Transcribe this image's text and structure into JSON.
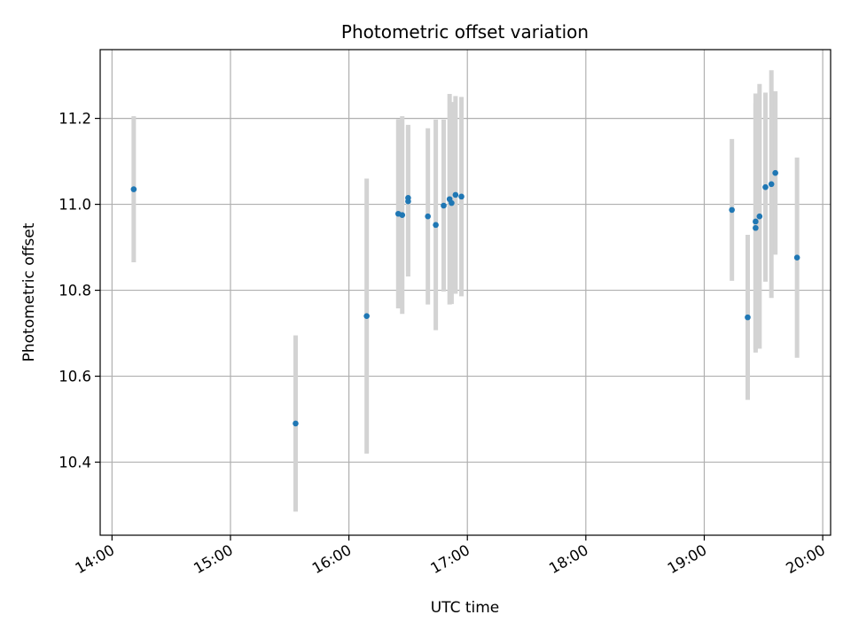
{
  "chart_data": {
    "type": "scatter",
    "title": "Photometric offset variation",
    "xlabel": "UTC time",
    "ylabel": "Photometric offset",
    "x_tick_labels": [
      "14:00",
      "15:00",
      "16:00",
      "17:00",
      "18:00",
      "19:00",
      "20:00"
    ],
    "y_tick_labels": [
      "10.4",
      "10.6",
      "10.8",
      "11.0",
      "11.2"
    ],
    "y_ticks": [
      10.4,
      10.6,
      10.8,
      11.0,
      11.2
    ],
    "xlim": [
      "13:54",
      "20:04"
    ],
    "ylim": [
      10.23,
      11.36
    ],
    "grid": true,
    "marker_color": "#1f77b4",
    "errorbar_color": "#d3d3d3",
    "points": [
      {
        "x": "14:11",
        "y": 11.035,
        "err": 0.17
      },
      {
        "x": "15:33",
        "y": 10.49,
        "err": 0.205
      },
      {
        "x": "16:09",
        "y": 10.74,
        "err": 0.32
      },
      {
        "x": "16:25",
        "y": 10.978,
        "err": 0.22
      },
      {
        "x": "16:27",
        "y": 10.975,
        "err": 0.23
      },
      {
        "x": "16:30",
        "y": 11.015,
        "err": 0.17
      },
      {
        "x": "16:30",
        "y": 11.007,
        "err": 0.175
      },
      {
        "x": "16:40",
        "y": 10.972,
        "err": 0.205
      },
      {
        "x": "16:44",
        "y": 10.952,
        "err": 0.245
      },
      {
        "x": "16:48",
        "y": 10.997,
        "err": 0.2
      },
      {
        "x": "16:51",
        "y": 11.012,
        "err": 0.245
      },
      {
        "x": "16:52",
        "y": 11.003,
        "err": 0.235
      },
      {
        "x": "16:54",
        "y": 11.022,
        "err": 0.23
      },
      {
        "x": "16:57",
        "y": 11.018,
        "err": 0.232
      },
      {
        "x": "19:14",
        "y": 10.987,
        "err": 0.165
      },
      {
        "x": "19:22",
        "y": 10.737,
        "err": 0.192
      },
      {
        "x": "19:26",
        "y": 10.96,
        "err": 0.298
      },
      {
        "x": "19:26",
        "y": 10.945,
        "err": 0.29
      },
      {
        "x": "19:28",
        "y": 10.972,
        "err": 0.308
      },
      {
        "x": "19:31",
        "y": 11.04,
        "err": 0.22
      },
      {
        "x": "19:34",
        "y": 11.047,
        "err": 0.265
      },
      {
        "x": "19:36",
        "y": 11.073,
        "err": 0.19
      },
      {
        "x": "19:47",
        "y": 10.876,
        "err": 0.233
      }
    ]
  }
}
